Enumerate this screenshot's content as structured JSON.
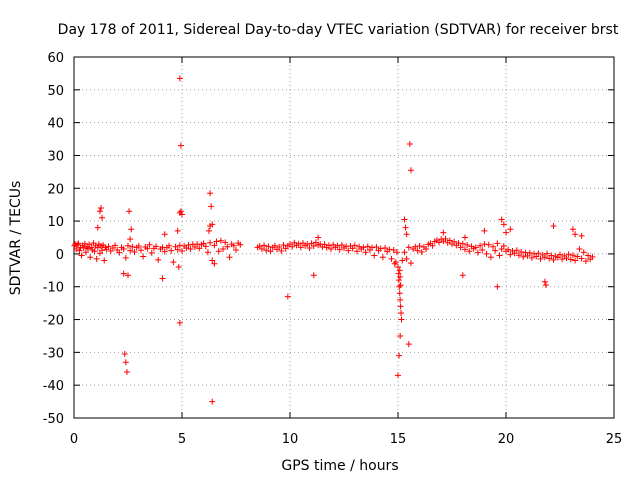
{
  "chart_data": {
    "type": "scatter",
    "title": "Day 178 of 2011, Sidereal Day-to-day VTEC variation (SDTVAR) for receiver brst",
    "xlabel": "GPS time / hours",
    "ylabel": "SDTVAR / TECUs",
    "xlim": [
      0,
      25
    ],
    "ylim": [
      -50,
      60
    ],
    "xticks": [
      0,
      5,
      10,
      15,
      20,
      25
    ],
    "yticks": [
      -50,
      -40,
      -30,
      -20,
      -10,
      0,
      10,
      20,
      30,
      40,
      50,
      60
    ],
    "grid": true,
    "marker": "plus",
    "color": "#ff0000",
    "series": [
      {
        "name": "SDTVAR",
        "points": [
          [
            0.02,
            2.5
          ],
          [
            0.05,
            3.0
          ],
          [
            0.1,
            1.5
          ],
          [
            0.15,
            2.8
          ],
          [
            0.2,
            3.2
          ],
          [
            0.25,
            1.0
          ],
          [
            0.3,
            2.0
          ],
          [
            0.35,
            -0.5
          ],
          [
            0.4,
            2.6
          ],
          [
            0.45,
            1.8
          ],
          [
            0.5,
            3.1
          ],
          [
            0.55,
            0.5
          ],
          [
            0.6,
            2.2
          ],
          [
            0.65,
            1.6
          ],
          [
            0.7,
            2.9
          ],
          [
            0.75,
            -1.0
          ],
          [
            0.8,
            2.0
          ],
          [
            0.85,
            1.2
          ],
          [
            0.9,
            3.3
          ],
          [
            0.95,
            0.8
          ],
          [
            1.0,
            2.5
          ],
          [
            1.05,
            -1.5
          ],
          [
            1.1,
            1.9
          ],
          [
            1.15,
            3.0
          ],
          [
            1.2,
            0.2
          ],
          [
            1.25,
            2.4
          ],
          [
            1.3,
            1.1
          ],
          [
            1.35,
            2.7
          ],
          [
            1.4,
            -2.0
          ],
          [
            1.45,
            2.0
          ],
          [
            1.5,
            1.4
          ],
          [
            1.6,
            2.3
          ],
          [
            1.7,
            0.9
          ],
          [
            1.8,
            1.8
          ],
          [
            1.9,
            2.6
          ],
          [
            2.0,
            1.2
          ],
          [
            2.1,
            0.4
          ],
          [
            2.2,
            2.0
          ],
          [
            2.3,
            1.5
          ],
          [
            2.4,
            -1.2
          ],
          [
            2.5,
            2.5
          ],
          [
            2.6,
            1.0
          ],
          [
            2.7,
            2.2
          ],
          [
            2.8,
            0.6
          ],
          [
            2.9,
            1.9
          ],
          [
            3.0,
            2.4
          ],
          [
            3.1,
            1.1
          ],
          [
            3.2,
            -0.8
          ],
          [
            3.3,
            2.1
          ],
          [
            3.4,
            1.6
          ],
          [
            3.5,
            2.8
          ],
          [
            3.6,
            0.3
          ],
          [
            3.7,
            1.7
          ],
          [
            3.8,
            2.3
          ],
          [
            3.9,
            -1.8
          ],
          [
            4.0,
            1.5
          ],
          [
            4.1,
            2.0
          ],
          [
            4.2,
            0.7
          ],
          [
            4.3,
            1.9
          ],
          [
            4.4,
            2.5
          ],
          [
            4.5,
            1.0
          ],
          [
            4.6,
            -2.5
          ],
          [
            4.7,
            2.2
          ],
          [
            4.8,
            1.3
          ],
          [
            4.9,
            2.6
          ],
          [
            5.0,
            0.9
          ],
          [
            5.1,
            2.4
          ],
          [
            5.2,
            1.8
          ],
          [
            5.3,
            2.7
          ],
          [
            5.4,
            1.5
          ],
          [
            5.5,
            2.9
          ],
          [
            5.6,
            2.1
          ],
          [
            5.7,
            3.0
          ],
          [
            5.8,
            1.7
          ],
          [
            5.9,
            2.8
          ],
          [
            6.0,
            3.2
          ],
          [
            6.1,
            2.3
          ],
          [
            6.2,
            0.5
          ],
          [
            6.3,
            3.4
          ],
          [
            6.4,
            -2.0
          ],
          [
            6.5,
            2.6
          ],
          [
            6.6,
            3.8
          ],
          [
            6.7,
            0.8
          ],
          [
            6.8,
            4.0
          ],
          [
            6.9,
            1.5
          ],
          [
            7.0,
            3.5
          ],
          [
            7.1,
            2.2
          ],
          [
            7.2,
            -1.0
          ],
          [
            7.3,
            3.0
          ],
          [
            7.4,
            2.5
          ],
          [
            7.5,
            1.2
          ],
          [
            7.6,
            3.3
          ],
          [
            7.7,
            2.8
          ],
          [
            8.5,
            2.0
          ],
          [
            8.6,
            2.4
          ],
          [
            8.7,
            1.5
          ],
          [
            8.8,
            2.6
          ],
          [
            8.9,
            1.1
          ],
          [
            9.0,
            2.3
          ],
          [
            9.1,
            0.8
          ],
          [
            9.2,
            1.9
          ],
          [
            9.3,
            2.5
          ],
          [
            9.4,
            1.4
          ],
          [
            9.5,
            2.1
          ],
          [
            9.6,
            0.9
          ],
          [
            9.7,
            2.7
          ],
          [
            9.8,
            1.6
          ],
          [
            9.9,
            2.4
          ],
          [
            10.0,
            3.0
          ],
          [
            10.1,
            2.2
          ],
          [
            10.2,
            3.4
          ],
          [
            10.3,
            2.6
          ],
          [
            10.4,
            3.1
          ],
          [
            10.5,
            2.0
          ],
          [
            10.6,
            3.3
          ],
          [
            10.7,
            2.5
          ],
          [
            10.8,
            3.0
          ],
          [
            10.9,
            1.8
          ],
          [
            11.0,
            3.2
          ],
          [
            11.1,
            2.4
          ],
          [
            11.2,
            3.5
          ],
          [
            11.3,
            2.7
          ],
          [
            11.4,
            3.0
          ],
          [
            11.5,
            2.1
          ],
          [
            11.6,
            2.9
          ],
          [
            11.7,
            1.9
          ],
          [
            11.8,
            2.6
          ],
          [
            11.9,
            1.5
          ],
          [
            12.0,
            2.8
          ],
          [
            12.1,
            2.0
          ],
          [
            12.2,
            2.5
          ],
          [
            12.3,
            1.3
          ],
          [
            12.4,
            2.7
          ],
          [
            12.5,
            1.8
          ],
          [
            12.6,
            2.3
          ],
          [
            12.7,
            1.0
          ],
          [
            12.8,
            2.4
          ],
          [
            12.9,
            1.7
          ],
          [
            13.0,
            2.6
          ],
          [
            13.1,
            0.8
          ],
          [
            13.2,
            2.2
          ],
          [
            13.3,
            1.5
          ],
          [
            13.4,
            2.0
          ],
          [
            13.5,
            0.5
          ],
          [
            13.6,
            2.3
          ],
          [
            13.7,
            1.2
          ],
          [
            13.8,
            1.9
          ],
          [
            13.9,
            -0.5
          ],
          [
            14.0,
            2.1
          ],
          [
            14.1,
            1.0
          ],
          [
            14.2,
            1.6
          ],
          [
            14.3,
            -1.0
          ],
          [
            14.4,
            1.8
          ],
          [
            14.5,
            0.7
          ],
          [
            14.6,
            1.4
          ],
          [
            14.7,
            -1.5
          ],
          [
            14.8,
            1.2
          ],
          [
            14.85,
            -3.0
          ],
          [
            14.9,
            -2.5
          ],
          [
            14.95,
            0.5
          ],
          [
            15.0,
            -4.0
          ],
          [
            15.02,
            -6.0
          ],
          [
            15.04,
            -8.0
          ],
          [
            15.06,
            -10.0
          ],
          [
            15.08,
            -12.0
          ],
          [
            15.1,
            -14.0
          ],
          [
            15.12,
            -16.0
          ],
          [
            15.14,
            -18.0
          ],
          [
            15.16,
            -20.0
          ],
          [
            15.1,
            -7.0
          ],
          [
            15.12,
            -9.5
          ],
          [
            15.08,
            -5.0
          ],
          [
            15.2,
            -2.0
          ],
          [
            15.3,
            0.5
          ],
          [
            15.4,
            -1.5
          ],
          [
            15.5,
            2.0
          ],
          [
            15.6,
            -2.8
          ],
          [
            15.7,
            1.5
          ],
          [
            15.8,
            2.2
          ],
          [
            15.9,
            1.0
          ],
          [
            16.0,
            2.4
          ],
          [
            16.1,
            0.6
          ],
          [
            16.2,
            2.1
          ],
          [
            16.3,
            1.5
          ],
          [
            16.4,
            2.9
          ],
          [
            16.5,
            3.2
          ],
          [
            16.6,
            2.5
          ],
          [
            16.7,
            3.8
          ],
          [
            16.8,
            4.2
          ],
          [
            16.9,
            3.5
          ],
          [
            17.0,
            4.5
          ],
          [
            17.1,
            3.9
          ],
          [
            17.2,
            4.6
          ],
          [
            17.3,
            3.4
          ],
          [
            17.4,
            4.1
          ],
          [
            17.5,
            3.0
          ],
          [
            17.6,
            3.7
          ],
          [
            17.7,
            2.6
          ],
          [
            17.8,
            3.3
          ],
          [
            17.9,
            2.0
          ],
          [
            18.0,
            3.1
          ],
          [
            18.1,
            1.4
          ],
          [
            18.2,
            2.7
          ],
          [
            18.3,
            0.8
          ],
          [
            18.4,
            2.3
          ],
          [
            18.5,
            1.6
          ],
          [
            18.6,
            2.0
          ],
          [
            18.7,
            0.4
          ],
          [
            18.8,
            2.5
          ],
          [
            18.9,
            1.2
          ],
          [
            19.0,
            3.0
          ],
          [
            19.1,
            0.0
          ],
          [
            19.2,
            2.8
          ],
          [
            19.3,
            -1.0
          ],
          [
            19.4,
            2.2
          ],
          [
            19.5,
            1.0
          ],
          [
            19.6,
            3.2
          ],
          [
            19.7,
            -0.5
          ],
          [
            19.8,
            1.5
          ],
          [
            19.9,
            2.4
          ],
          [
            20.0,
            0.8
          ],
          [
            20.1,
            1.3
          ],
          [
            20.2,
            -0.2
          ],
          [
            20.3,
            0.9
          ],
          [
            20.4,
            0.2
          ],
          [
            20.5,
            1.1
          ],
          [
            20.6,
            -0.4
          ],
          [
            20.7,
            0.6
          ],
          [
            20.8,
            -0.9
          ],
          [
            20.9,
            0.4
          ],
          [
            21.0,
            -0.6
          ],
          [
            21.1,
            0.3
          ],
          [
            21.2,
            -1.2
          ],
          [
            21.3,
            0.0
          ],
          [
            21.4,
            -0.8
          ],
          [
            21.5,
            0.2
          ],
          [
            21.6,
            -1.5
          ],
          [
            21.7,
            -0.3
          ],
          [
            21.8,
            -1.0
          ],
          [
            21.9,
            0.1
          ],
          [
            22.0,
            -1.4
          ],
          [
            22.1,
            -0.5
          ],
          [
            22.2,
            -1.8
          ],
          [
            22.3,
            -0.7
          ],
          [
            22.4,
            -1.1
          ],
          [
            22.5,
            -0.2
          ],
          [
            22.6,
            -1.6
          ],
          [
            22.7,
            -0.6
          ],
          [
            22.8,
            -1.3
          ],
          [
            22.9,
            -0.1
          ],
          [
            23.0,
            -1.7
          ],
          [
            23.1,
            -0.4
          ],
          [
            23.2,
            -2.0
          ],
          [
            23.3,
            -0.8
          ],
          [
            23.4,
            1.5
          ],
          [
            23.5,
            -1.4
          ],
          [
            23.6,
            0.5
          ],
          [
            23.7,
            -2.2
          ],
          [
            23.8,
            -0.5
          ],
          [
            23.9,
            -1.6
          ],
          [
            24.0,
            -0.9
          ],
          [
            1.2,
            13.0
          ],
          [
            1.25,
            14.0
          ],
          [
            1.3,
            11.0
          ],
          [
            1.1,
            8.0
          ],
          [
            2.3,
            -6.0
          ],
          [
            2.35,
            -30.5
          ],
          [
            2.4,
            -33.0
          ],
          [
            2.45,
            -36.0
          ],
          [
            2.5,
            -6.5
          ],
          [
            2.55,
            13.0
          ],
          [
            2.6,
            4.5
          ],
          [
            2.65,
            7.5
          ],
          [
            4.1,
            -7.5
          ],
          [
            4.2,
            6.0
          ],
          [
            4.9,
            53.5
          ],
          [
            4.95,
            33.0
          ],
          [
            4.9,
            12.5
          ],
          [
            4.95,
            13.0
          ],
          [
            5.0,
            12.0
          ],
          [
            4.9,
            -21.0
          ],
          [
            4.8,
            7.0
          ],
          [
            4.85,
            -4.0
          ],
          [
            6.3,
            18.5
          ],
          [
            6.35,
            14.5
          ],
          [
            6.4,
            9.0
          ],
          [
            6.3,
            8.5
          ],
          [
            6.25,
            7.0
          ],
          [
            6.4,
            -45.0
          ],
          [
            6.5,
            -3.0
          ],
          [
            9.9,
            -13.0
          ],
          [
            11.1,
            -6.5
          ],
          [
            11.3,
            5.0
          ],
          [
            15.0,
            -37.0
          ],
          [
            15.05,
            -31.0
          ],
          [
            15.1,
            -25.0
          ],
          [
            15.3,
            10.5
          ],
          [
            15.35,
            8.0
          ],
          [
            15.4,
            6.0
          ],
          [
            15.55,
            33.5
          ],
          [
            15.6,
            25.5
          ],
          [
            15.5,
            -27.5
          ],
          [
            17.1,
            6.5
          ],
          [
            18.0,
            -6.5
          ],
          [
            18.1,
            5.0
          ],
          [
            19.0,
            7.0
          ],
          [
            19.6,
            -10.0
          ],
          [
            19.8,
            10.5
          ],
          [
            19.9,
            9.0
          ],
          [
            20.0,
            6.5
          ],
          [
            20.2,
            7.5
          ],
          [
            21.8,
            -8.5
          ],
          [
            21.85,
            -9.5
          ],
          [
            22.2,
            8.5
          ],
          [
            23.1,
            7.5
          ],
          [
            23.2,
            6.0
          ],
          [
            23.5,
            5.5
          ]
        ]
      }
    ]
  }
}
